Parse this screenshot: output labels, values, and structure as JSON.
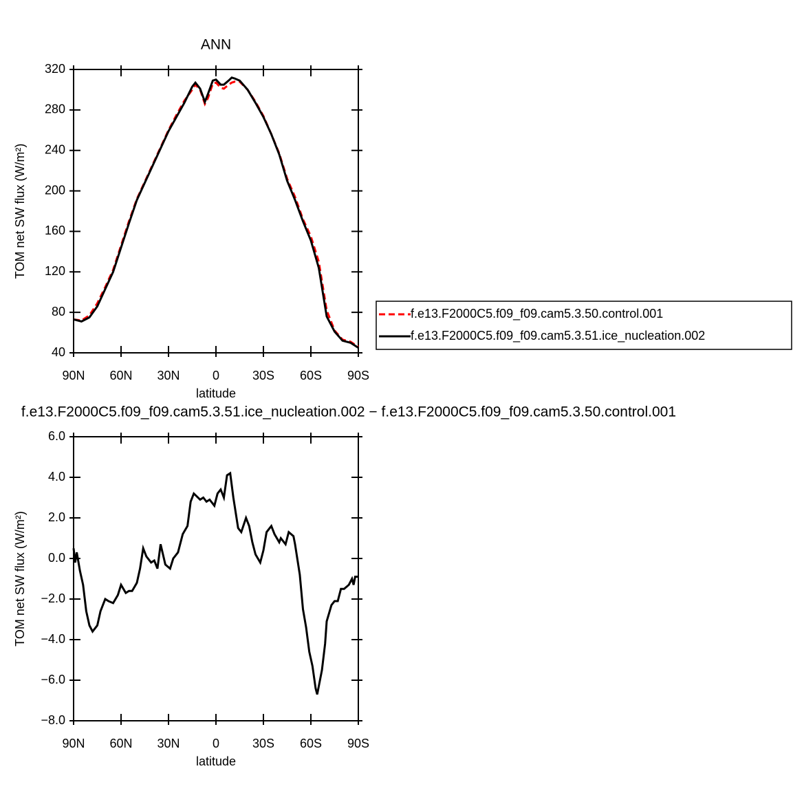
{
  "chart_data": [
    {
      "type": "line",
      "title": "ANN",
      "xlabel": "latitude",
      "ylabel": "TOM net SW flux (W/m²)",
      "xlim": [
        90,
        -90
      ],
      "xticks": [
        {
          "value": 90,
          "label": "90N"
        },
        {
          "value": 60,
          "label": "60N"
        },
        {
          "value": 30,
          "label": "30N"
        },
        0,
        {
          "value": -30,
          "label": "30S"
        },
        {
          "value": -60,
          "label": "60S"
        },
        {
          "value": -90,
          "label": "90S"
        }
      ],
      "ylim": [
        40,
        320
      ],
      "yticks": [
        40,
        80,
        120,
        160,
        200,
        240,
        280,
        320
      ],
      "legend": "right",
      "x": [
        90,
        85,
        80,
        75,
        70,
        65,
        60,
        55,
        50,
        45,
        40,
        35,
        30,
        25,
        20,
        15,
        13,
        10,
        7,
        5,
        2,
        0,
        -3,
        -5,
        -8,
        -10,
        -12,
        -15,
        -20,
        -25,
        -30,
        -35,
        -40,
        -45,
        -50,
        -55,
        -60,
        -65,
        -70,
        -75,
        -80,
        -85,
        -90
      ],
      "series": [
        {
          "name": "f.e13.F2000C5.f09_f09.cam5.3.50.control.001",
          "color": "#ff0000",
          "style": "dashed",
          "values": [
            73,
            72,
            77,
            89,
            105,
            122,
            146,
            170,
            192,
            209,
            226,
            243,
            260,
            275,
            289,
            300,
            305,
            300,
            286,
            292,
            306,
            307,
            302,
            301,
            305,
            307,
            308,
            308,
            300,
            288,
            274,
            256,
            237,
            212,
            194,
            172,
            155,
            130,
            82,
            62,
            53,
            51,
            46
          ]
        },
        {
          "name": "f.e13.F2000C5.f09_f09.cam5.3.51.ice_nucleation.002",
          "color": "#000000",
          "style": "solid",
          "values": [
            73,
            71,
            75,
            86,
            103,
            120,
            144,
            168,
            191,
            208,
            225,
            242,
            259,
            273,
            287,
            303,
            307,
            301,
            288,
            296,
            309,
            310,
            305,
            305,
            309,
            312,
            311,
            309,
            300,
            287,
            273,
            256,
            236,
            210,
            191,
            170,
            151,
            124,
            76,
            61,
            52,
            50,
            45
          ]
        }
      ]
    },
    {
      "type": "line",
      "title": "f.e13.F2000C5.f09_f09.cam5.3.51.ice_nucleation.002 − f.e13.F2000C5.f09_f09.cam5.3.50.control.001",
      "xlabel": "latitude",
      "ylabel": "TOM net SW flux (W/m²)",
      "xlim": [
        90,
        -90
      ],
      "xticks": [
        {
          "value": 90,
          "label": "90N"
        },
        {
          "value": 60,
          "label": "60N"
        },
        {
          "value": 30,
          "label": "30N"
        },
        0,
        {
          "value": -30,
          "label": "30S"
        },
        {
          "value": -60,
          "label": "60S"
        },
        {
          "value": -90,
          "label": "90S"
        }
      ],
      "ylim": [
        -8,
        6
      ],
      "yticks": [
        {
          "value": -8,
          "label": "−8.0"
        },
        {
          "value": -6,
          "label": "−6.0"
        },
        {
          "value": -4,
          "label": "−4.0"
        },
        {
          "value": -2,
          "label": "−2.0"
        },
        {
          "value": 0,
          "label": "0.0"
        },
        {
          "value": 2,
          "label": "2.0"
        },
        {
          "value": 4,
          "label": "4.0"
        },
        {
          "value": 6,
          "label": "6.0"
        }
      ],
      "color": "#000000",
      "x": [
        90,
        89,
        88,
        86,
        84,
        82,
        80,
        78,
        75,
        73,
        70,
        68,
        65,
        62,
        60,
        57,
        55,
        53,
        50,
        48,
        46,
        44,
        41,
        39,
        37,
        35,
        32,
        29,
        27,
        24,
        21,
        18,
        16,
        14,
        10,
        8,
        6,
        4,
        1,
        -1,
        -3,
        -5,
        -7,
        -9,
        -11,
        -14,
        -16,
        -19,
        -21,
        -23,
        -25,
        -28,
        -30,
        -32,
        -35,
        -37,
        -40,
        -41,
        -44,
        -46,
        -49,
        -50,
        -53,
        -55,
        -57,
        -59,
        -61,
        -63,
        -64,
        -67,
        -69,
        -70,
        -73,
        -75,
        -77,
        -79,
        -81,
        -84,
        -86,
        -87,
        -88,
        -90
      ],
      "values": [
        0.5,
        -0.2,
        0.3,
        -0.6,
        -1.3,
        -2.6,
        -3.3,
        -3.6,
        -3.3,
        -2.6,
        -2.0,
        -2.1,
        -2.2,
        -1.8,
        -1.3,
        -1.7,
        -1.6,
        -1.6,
        -1.2,
        -0.5,
        0.5,
        0.1,
        -0.2,
        -0.1,
        -0.5,
        0.7,
        -0.3,
        -0.5,
        0.0,
        0.3,
        1.2,
        1.6,
        2.8,
        3.2,
        2.9,
        3.0,
        2.8,
        2.9,
        2.6,
        3.2,
        3.4,
        3.0,
        4.1,
        4.2,
        3.0,
        1.5,
        1.3,
        2.0,
        1.6,
        0.8,
        0.2,
        -0.2,
        0.4,
        1.3,
        1.6,
        1.2,
        0.8,
        1.0,
        0.7,
        1.3,
        1.1,
        0.7,
        -0.8,
        -2.5,
        -3.4,
        -4.6,
        -5.3,
        -6.4,
        -6.7,
        -5.5,
        -4.2,
        -3.1,
        -2.3,
        -2.1,
        -2.1,
        -1.5,
        -1.5,
        -1.3,
        -1.0,
        -1.3,
        -0.9,
        -0.9
      ]
    }
  ]
}
